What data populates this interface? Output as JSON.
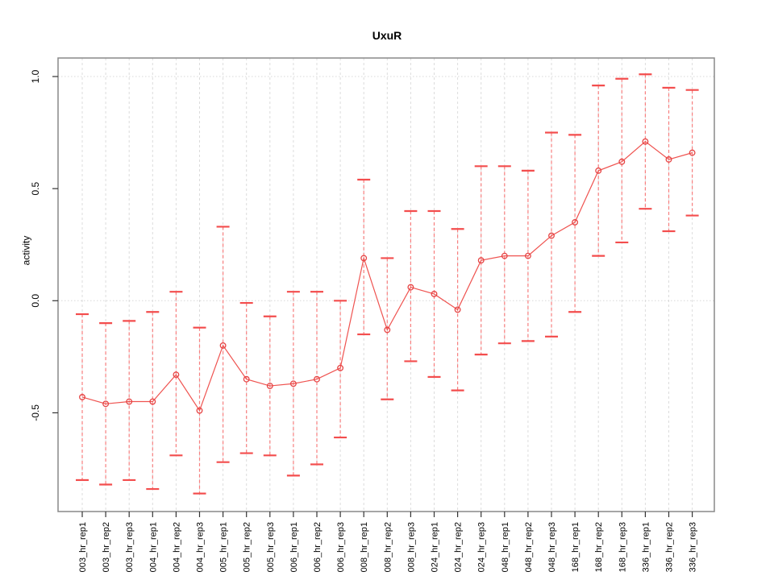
{
  "title": "UxuR",
  "chart_data": {
    "type": "line",
    "subtype": "points-with-error-bars",
    "title": "UxuR",
    "xlabel": "",
    "ylabel": "activity",
    "ylim": [
      -0.94,
      1.08
    ],
    "yticks": [
      -0.5,
      0.0,
      0.5,
      1.0
    ],
    "ytick_labels": [
      "-0.5",
      "0.0",
      "0.5",
      "1.0"
    ],
    "hlines": [
      0.0,
      1.0
    ],
    "grid": "vertical dashed per category; horizontal dotted at 0.0 and 1.0",
    "legend_position": "none",
    "categories": [
      "003_hr_rep1",
      "003_hr_rep2",
      "003_hr_rep3",
      "004_hr_rep1",
      "004_hr_rep2",
      "004_hr_rep3",
      "005_hr_rep1",
      "005_hr_rep2",
      "005_hr_rep3",
      "006_hr_rep1",
      "006_hr_rep2",
      "006_hr_rep3",
      "008_hr_rep1",
      "008_hr_rep2",
      "008_hr_rep3",
      "024_hr_rep1",
      "024_hr_rep2",
      "024_hr_rep3",
      "048_hr_rep1",
      "048_hr_rep2",
      "048_hr_rep3",
      "168_hr_rep1",
      "168_hr_rep2",
      "168_hr_rep3",
      "336_hr_rep1",
      "336_hr_rep2",
      "336_hr_rep3"
    ],
    "series": [
      {
        "name": "activity",
        "values": [
          -0.43,
          -0.46,
          -0.45,
          -0.45,
          -0.33,
          -0.49,
          -0.2,
          -0.35,
          -0.38,
          -0.37,
          -0.35,
          -0.3,
          0.19,
          -0.13,
          0.06,
          0.03,
          -0.04,
          0.18,
          0.2,
          0.2,
          0.29,
          0.35,
          0.58,
          0.62,
          0.71,
          0.63,
          0.66
        ],
        "lower": [
          -0.8,
          -0.82,
          -0.8,
          -0.84,
          -0.69,
          -0.86,
          -0.72,
          -0.68,
          -0.69,
          -0.78,
          -0.73,
          -0.61,
          -0.15,
          -0.44,
          -0.27,
          -0.34,
          -0.4,
          -0.24,
          -0.19,
          -0.18,
          -0.16,
          -0.05,
          0.2,
          0.26,
          0.41,
          0.31,
          0.38
        ],
        "upper": [
          -0.06,
          -0.1,
          -0.09,
          -0.05,
          0.04,
          -0.12,
          0.33,
          -0.01,
          -0.07,
          0.04,
          0.04,
          0.0,
          0.54,
          0.19,
          0.4,
          0.4,
          0.32,
          0.6,
          0.6,
          0.58,
          0.75,
          0.74,
          0.96,
          0.99,
          1.01,
          0.95,
          0.94
        ]
      }
    ],
    "colors": {
      "point_stroke": "#e64545",
      "line": "#ef5350",
      "error_bar_line": "#f87f7f",
      "error_bar_cap": "#f34d4d",
      "grid_vertical": "#dcdcdc",
      "grid_horizontal": "#d8d8d8",
      "box_border": "#888888",
      "tick": "#333333",
      "text": "#000000"
    }
  }
}
